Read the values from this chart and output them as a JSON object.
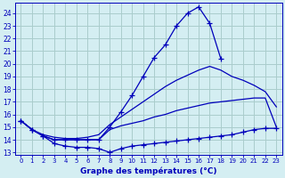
{
  "title": "Graphe des températures (°C)",
  "background_color": "#d4eef2",
  "grid_color": "#aacccc",
  "line_color": "#0000bb",
  "xlim": [
    -0.5,
    23.5
  ],
  "ylim": [
    12.8,
    24.8
  ],
  "yticks": [
    13,
    14,
    15,
    16,
    17,
    18,
    19,
    20,
    21,
    22,
    23,
    24
  ],
  "xticks": [
    0,
    1,
    2,
    3,
    4,
    5,
    6,
    7,
    8,
    9,
    10,
    11,
    12,
    13,
    14,
    15,
    16,
    17,
    18,
    19,
    20,
    21,
    22,
    23
  ],
  "series": [
    {
      "x": [
        0,
        1,
        2,
        3,
        4,
        5,
        6,
        7,
        8,
        9,
        10,
        11,
        12,
        13,
        14,
        15,
        16,
        17,
        18
      ],
      "y": [
        15.5,
        14.8,
        14.3,
        14.0,
        14.0,
        14.0,
        14.0,
        14.0,
        15.0,
        16.2,
        17.5,
        19.0,
        20.5,
        21.5,
        23.0,
        24.0,
        24.5,
        23.2,
        20.4
      ],
      "marker": true
    },
    {
      "x": [
        0,
        1,
        2,
        3,
        4,
        5,
        6,
        7,
        8,
        9,
        10,
        11,
        12,
        13,
        14,
        15,
        16,
        17,
        18,
        19,
        20,
        21,
        22,
        23
      ],
      "y": [
        15.5,
        14.8,
        14.4,
        14.2,
        14.1,
        14.1,
        14.2,
        14.4,
        15.2,
        15.8,
        16.4,
        17.0,
        17.6,
        18.2,
        18.7,
        19.1,
        19.5,
        19.8,
        19.5,
        19.0,
        18.7,
        18.3,
        17.8,
        16.6
      ],
      "marker": false
    },
    {
      "x": [
        0,
        1,
        2,
        3,
        4,
        5,
        6,
        7,
        8,
        9,
        10,
        11,
        12,
        13,
        14,
        15,
        16,
        17,
        18,
        19,
        20,
        21,
        22,
        23
      ],
      "y": [
        15.5,
        14.8,
        14.3,
        14.0,
        14.0,
        14.0,
        14.0,
        14.0,
        14.8,
        15.1,
        15.3,
        15.5,
        15.8,
        16.0,
        16.3,
        16.5,
        16.7,
        16.9,
        17.0,
        17.1,
        17.2,
        17.3,
        17.3,
        15.0
      ],
      "marker": false
    },
    {
      "x": [
        0,
        1,
        2,
        3,
        4,
        5,
        6,
        7,
        8,
        9,
        10,
        11,
        12,
        13,
        14,
        15,
        16,
        17,
        18,
        19,
        20,
        21,
        22,
        23
      ],
      "y": [
        15.5,
        14.8,
        14.3,
        13.7,
        13.5,
        13.4,
        13.4,
        13.3,
        13.0,
        13.3,
        13.5,
        13.6,
        13.7,
        13.8,
        13.9,
        14.0,
        14.1,
        14.2,
        14.3,
        14.4,
        14.6,
        14.8,
        14.9,
        14.9
      ],
      "marker": true
    }
  ]
}
